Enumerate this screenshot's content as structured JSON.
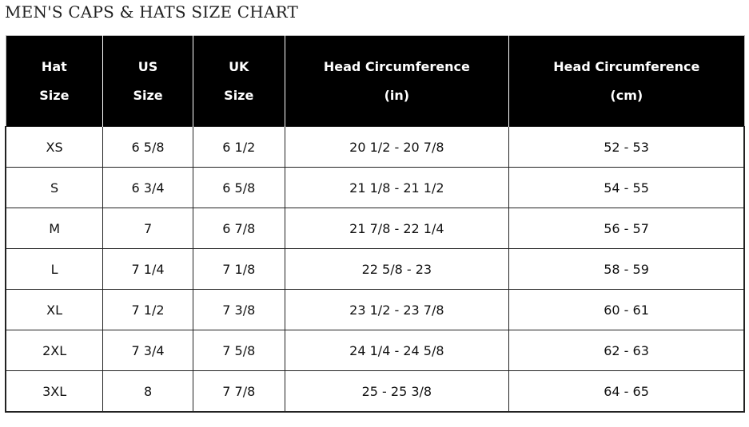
{
  "title": "MEN'S CAPS & HATS SIZE CHART",
  "headers": [
    [
      "Hat",
      "Size"
    ],
    [
      "US",
      "Size"
    ],
    [
      "UK",
      "Size"
    ],
    [
      "Head Circumference",
      "(in)"
    ],
    [
      "Head Circumference",
      "(cm)"
    ]
  ],
  "rows": [
    [
      "XS",
      "6 5/8",
      "6 1/2",
      "20 1/2 - 20 7/8",
      "52 - 53"
    ],
    [
      "S",
      "6 3/4",
      "6 5/8",
      "21 1/8 - 21 1/2",
      "54 - 55"
    ],
    [
      "M",
      "7",
      "6 7/8",
      "21 7/8 - 22 1/4",
      "56 - 57"
    ],
    [
      "L",
      "7 1/4",
      "7 1/8",
      "22 5/8 - 23",
      "58 - 59"
    ],
    [
      "XL",
      "7 1/2",
      "7 3/8",
      "23 1/2 - 23 7/8",
      "60 - 61"
    ],
    [
      "2XL",
      "7 3/4",
      "7 5/8",
      "24 1/4 - 24 5/8",
      "62 - 63"
    ],
    [
      "3XL",
      "8",
      "7 7/8",
      "25 - 25 3/8",
      "64 - 65"
    ]
  ]
}
